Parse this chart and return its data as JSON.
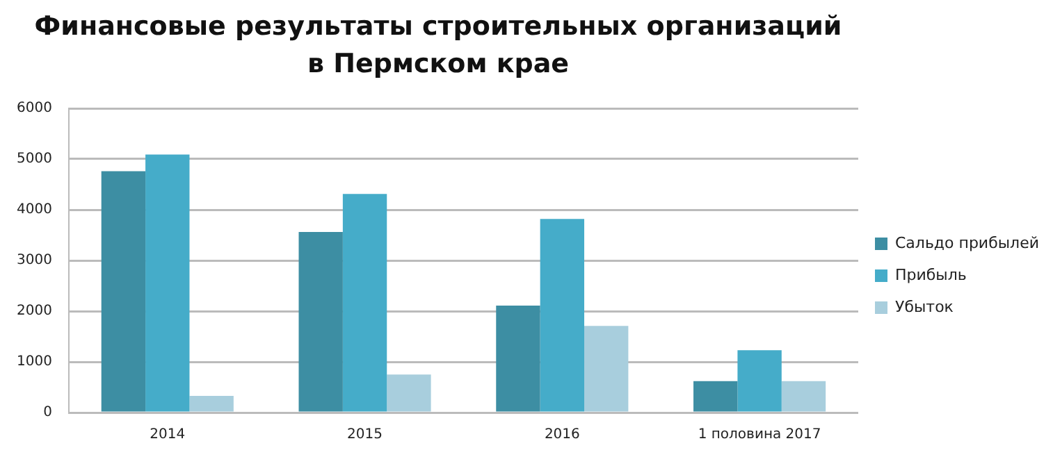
{
  "chart_data": {
    "type": "bar",
    "title": "Финансовые результаты строительных организаций\nв Пермском крае",
    "categories": [
      "2014",
      "2015",
      "2016",
      "1 половина 2017"
    ],
    "series": [
      {
        "name": "Сальдо прибылей",
        "color": "#3d8ea3",
        "values": [
          4760,
          3560,
          2110,
          620
        ]
      },
      {
        "name": "Прибыль",
        "color": "#45acc9",
        "values": [
          5090,
          4310,
          3820,
          1230
        ]
      },
      {
        "name": "Убыток",
        "color": "#a8cedd",
        "values": [
          330,
          750,
          1710,
          620
        ]
      }
    ],
    "ylim": [
      0,
      6000
    ],
    "yticks": [
      0,
      1000,
      2000,
      3000,
      4000,
      5000,
      6000
    ],
    "grid": "y",
    "legend": "right"
  }
}
